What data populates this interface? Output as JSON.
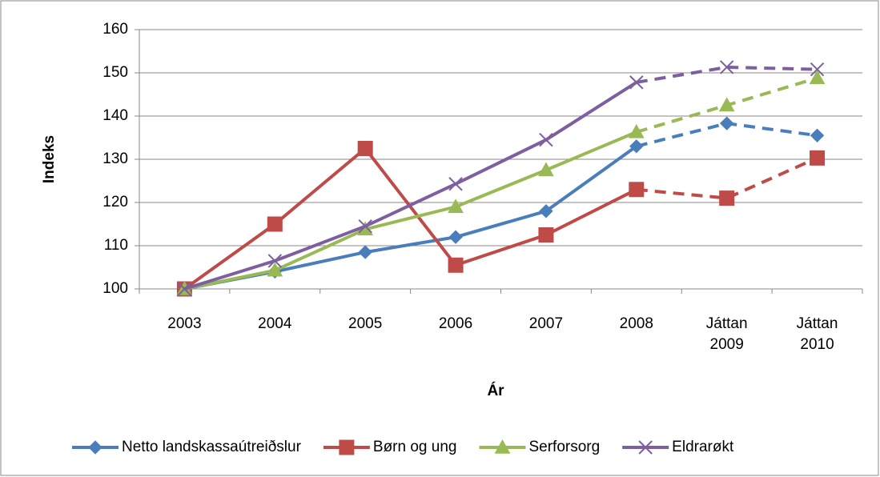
{
  "chart_data": {
    "type": "line",
    "x_label": "Ár",
    "y_label": "Indeks",
    "categories": [
      "2003",
      "2004",
      "2005",
      "2006",
      "2007",
      "2008",
      "Játtan 2009",
      "Játtan 2010"
    ],
    "dashed_after": "2008",
    "ylim": [
      100,
      160
    ],
    "yticks": [
      100,
      110,
      120,
      130,
      140,
      150,
      160
    ],
    "grid": true,
    "legend": "bottom",
    "series": [
      {
        "name": "Netto landskassaútreiðslur",
        "color": "#4a7ebb",
        "marker": "diamond",
        "values": [
          100,
          104,
          108.5,
          112,
          118,
          133,
          138.3,
          135.5
        ]
      },
      {
        "name": "Børn og ung",
        "color": "#be4b48",
        "marker": "square",
        "values": [
          100,
          115,
          132.5,
          105.5,
          112.5,
          123,
          121,
          130.3
        ]
      },
      {
        "name": "Serforsorg",
        "color": "#98b954",
        "marker": "triangle",
        "values": [
          100,
          104.3,
          113.8,
          119,
          127.5,
          136.3,
          142.5,
          148.8
        ]
      },
      {
        "name": "Eldrarøkt",
        "color": "#7d5fa0",
        "marker": "x",
        "values": [
          100,
          106.5,
          114.5,
          124.3,
          134.5,
          147.8,
          151.3,
          150.8
        ]
      }
    ]
  }
}
